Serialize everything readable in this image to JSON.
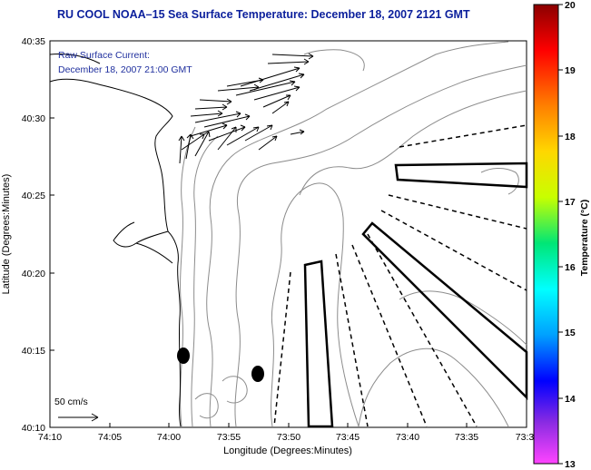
{
  "title": "RU COOL  NOAA–15  Sea Surface Temperature:  December 18, 2007 2121 GMT",
  "legend": {
    "line1": "Raw Surface Current:",
    "line2": "December 18, 2007 21:00 GMT"
  },
  "axes": {
    "xlabel": "Longitude (Degrees:Minutes)",
    "ylabel": "Latitude (Degrees:Minutes)",
    "x_ticks": [
      "74:10",
      "74:05",
      "74:00",
      "73:55",
      "73:50",
      "73:45",
      "73:40",
      "73:35",
      "73:3"
    ],
    "y_ticks": [
      "40:35",
      "40:30",
      "40:25",
      "40:20",
      "40:15",
      "40:10"
    ]
  },
  "colorbar": {
    "label": "Temperature (°C)",
    "ticks": [
      "20",
      "19",
      "18",
      "17",
      "16",
      "15",
      "14",
      "13"
    ],
    "colors": [
      "#8b0000",
      "#ff0000",
      "#ff7f00",
      "#ffd700",
      "#c8ff00",
      "#00e676",
      "#00ffff",
      "#00a0ff",
      "#0000ff",
      "#8a2be2",
      "#ff44ff"
    ]
  },
  "scale": {
    "label": "50 cm/s"
  },
  "colors": {
    "title": "#0b1f9c",
    "legend": "#1f2f9e"
  }
}
